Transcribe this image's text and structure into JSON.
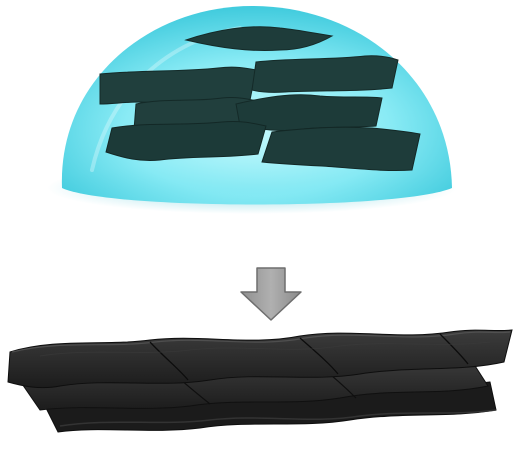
{
  "figure": {
    "top_panel": {
      "object": "droplet-dome",
      "sheet_count": 7,
      "colors": {
        "dome_center": "#8df3fb",
        "dome_edge": "#29c9dc",
        "sheet": "#1f3d3b",
        "sheet_edge": "#152b29"
      }
    },
    "arrow": {
      "direction": "down",
      "colors": {
        "fill": "#9a9a9a",
        "stroke": "#6e6e6e"
      }
    },
    "bottom_panel": {
      "object": "stacked-layers",
      "layer_count": 3,
      "colors": {
        "sheet": "#2b2b2b",
        "sheet_dark": "#151515",
        "highlight": "#4a4a4a"
      }
    }
  }
}
